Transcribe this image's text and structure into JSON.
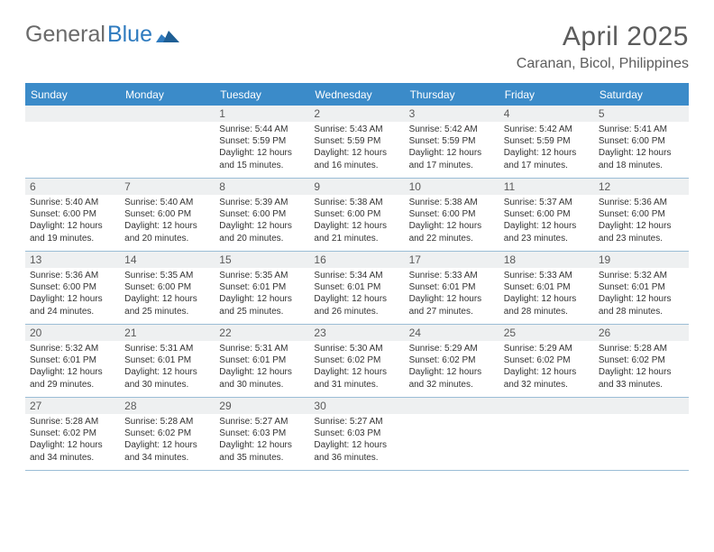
{
  "brand": {
    "part1": "General",
    "part2": "Blue"
  },
  "title": "April 2025",
  "location": "Caranan, Bicol, Philippines",
  "colors": {
    "header_bg": "#3b8bc9",
    "header_text": "#ffffff",
    "border": "#9bbdd6",
    "daynum_bg": "#eef0f1",
    "text": "#333333",
    "title_text": "#5c5c5c",
    "logo_gray": "#6a6a6a",
    "logo_blue": "#2f7bbf"
  },
  "layout": {
    "type": "calendar-table",
    "columns": 7,
    "rows": 5,
    "first_weekday_index": 2
  },
  "dow": [
    "Sunday",
    "Monday",
    "Tuesday",
    "Wednesday",
    "Thursday",
    "Friday",
    "Saturday"
  ],
  "days": [
    {
      "n": 1,
      "sunrise": "5:44 AM",
      "sunset": "5:59 PM",
      "daylight": "12 hours and 15 minutes."
    },
    {
      "n": 2,
      "sunrise": "5:43 AM",
      "sunset": "5:59 PM",
      "daylight": "12 hours and 16 minutes."
    },
    {
      "n": 3,
      "sunrise": "5:42 AM",
      "sunset": "5:59 PM",
      "daylight": "12 hours and 17 minutes."
    },
    {
      "n": 4,
      "sunrise": "5:42 AM",
      "sunset": "5:59 PM",
      "daylight": "12 hours and 17 minutes."
    },
    {
      "n": 5,
      "sunrise": "5:41 AM",
      "sunset": "6:00 PM",
      "daylight": "12 hours and 18 minutes."
    },
    {
      "n": 6,
      "sunrise": "5:40 AM",
      "sunset": "6:00 PM",
      "daylight": "12 hours and 19 minutes."
    },
    {
      "n": 7,
      "sunrise": "5:40 AM",
      "sunset": "6:00 PM",
      "daylight": "12 hours and 20 minutes."
    },
    {
      "n": 8,
      "sunrise": "5:39 AM",
      "sunset": "6:00 PM",
      "daylight": "12 hours and 20 minutes."
    },
    {
      "n": 9,
      "sunrise": "5:38 AM",
      "sunset": "6:00 PM",
      "daylight": "12 hours and 21 minutes."
    },
    {
      "n": 10,
      "sunrise": "5:38 AM",
      "sunset": "6:00 PM",
      "daylight": "12 hours and 22 minutes."
    },
    {
      "n": 11,
      "sunrise": "5:37 AM",
      "sunset": "6:00 PM",
      "daylight": "12 hours and 23 minutes."
    },
    {
      "n": 12,
      "sunrise": "5:36 AM",
      "sunset": "6:00 PM",
      "daylight": "12 hours and 23 minutes."
    },
    {
      "n": 13,
      "sunrise": "5:36 AM",
      "sunset": "6:00 PM",
      "daylight": "12 hours and 24 minutes."
    },
    {
      "n": 14,
      "sunrise": "5:35 AM",
      "sunset": "6:00 PM",
      "daylight": "12 hours and 25 minutes."
    },
    {
      "n": 15,
      "sunrise": "5:35 AM",
      "sunset": "6:01 PM",
      "daylight": "12 hours and 25 minutes."
    },
    {
      "n": 16,
      "sunrise": "5:34 AM",
      "sunset": "6:01 PM",
      "daylight": "12 hours and 26 minutes."
    },
    {
      "n": 17,
      "sunrise": "5:33 AM",
      "sunset": "6:01 PM",
      "daylight": "12 hours and 27 minutes."
    },
    {
      "n": 18,
      "sunrise": "5:33 AM",
      "sunset": "6:01 PM",
      "daylight": "12 hours and 28 minutes."
    },
    {
      "n": 19,
      "sunrise": "5:32 AM",
      "sunset": "6:01 PM",
      "daylight": "12 hours and 28 minutes."
    },
    {
      "n": 20,
      "sunrise": "5:32 AM",
      "sunset": "6:01 PM",
      "daylight": "12 hours and 29 minutes."
    },
    {
      "n": 21,
      "sunrise": "5:31 AM",
      "sunset": "6:01 PM",
      "daylight": "12 hours and 30 minutes."
    },
    {
      "n": 22,
      "sunrise": "5:31 AM",
      "sunset": "6:01 PM",
      "daylight": "12 hours and 30 minutes."
    },
    {
      "n": 23,
      "sunrise": "5:30 AM",
      "sunset": "6:02 PM",
      "daylight": "12 hours and 31 minutes."
    },
    {
      "n": 24,
      "sunrise": "5:29 AM",
      "sunset": "6:02 PM",
      "daylight": "12 hours and 32 minutes."
    },
    {
      "n": 25,
      "sunrise": "5:29 AM",
      "sunset": "6:02 PM",
      "daylight": "12 hours and 32 minutes."
    },
    {
      "n": 26,
      "sunrise": "5:28 AM",
      "sunset": "6:02 PM",
      "daylight": "12 hours and 33 minutes."
    },
    {
      "n": 27,
      "sunrise": "5:28 AM",
      "sunset": "6:02 PM",
      "daylight": "12 hours and 34 minutes."
    },
    {
      "n": 28,
      "sunrise": "5:28 AM",
      "sunset": "6:02 PM",
      "daylight": "12 hours and 34 minutes."
    },
    {
      "n": 29,
      "sunrise": "5:27 AM",
      "sunset": "6:03 PM",
      "daylight": "12 hours and 35 minutes."
    },
    {
      "n": 30,
      "sunrise": "5:27 AM",
      "sunset": "6:03 PM",
      "daylight": "12 hours and 36 minutes."
    }
  ],
  "labels": {
    "sunrise": "Sunrise:",
    "sunset": "Sunset:",
    "daylight": "Daylight:"
  }
}
